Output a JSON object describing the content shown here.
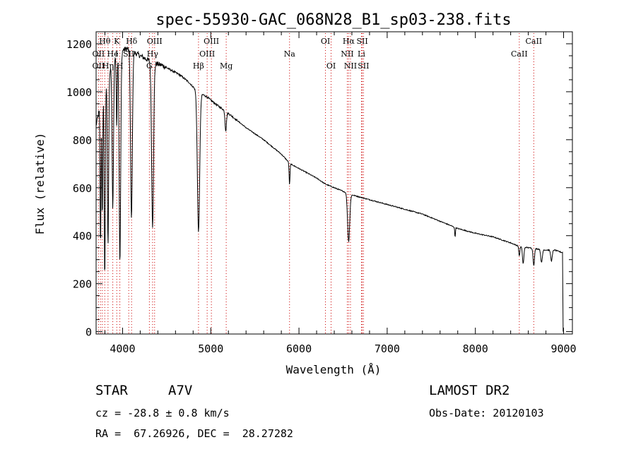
{
  "chart_data": {
    "type": "line",
    "title": "spec-55930-GAC_068N28_B1_sp03-238.fits",
    "xlabel": "Wavelength (Å)",
    "ylabel": "Flux (relative)",
    "xlim": [
      3700,
      9100
    ],
    "ylim": [
      -10,
      1250
    ],
    "xticks": [
      4000,
      5000,
      6000,
      7000,
      8000,
      9000
    ],
    "yticks": [
      0,
      200,
      400,
      600,
      800,
      1000,
      1200
    ],
    "continuum": [
      [
        3700,
        860
      ],
      [
        3780,
        1000
      ],
      [
        3850,
        1080
      ],
      [
        3920,
        1150
      ],
      [
        3980,
        1170
      ],
      [
        4050,
        1180
      ],
      [
        4150,
        1160
      ],
      [
        4250,
        1140
      ],
      [
        4350,
        1120
      ],
      [
        4450,
        1110
      ],
      [
        4550,
        1090
      ],
      [
        4650,
        1070
      ],
      [
        4750,
        1040
      ],
      [
        4850,
        1000
      ],
      [
        4950,
        980
      ],
      [
        5050,
        950
      ],
      [
        5200,
        910
      ],
      [
        5400,
        850
      ],
      [
        5600,
        800
      ],
      [
        5800,
        740
      ],
      [
        5900,
        700
      ],
      [
        6000,
        680
      ],
      [
        6100,
        660
      ],
      [
        6200,
        640
      ],
      [
        6300,
        615
      ],
      [
        6400,
        600
      ],
      [
        6500,
        585
      ],
      [
        6600,
        570
      ],
      [
        6700,
        560
      ],
      [
        6800,
        550
      ],
      [
        7000,
        530
      ],
      [
        7200,
        510
      ],
      [
        7400,
        490
      ],
      [
        7600,
        460
      ],
      [
        7800,
        430
      ],
      [
        8000,
        410
      ],
      [
        8200,
        395
      ],
      [
        8400,
        370
      ],
      [
        8500,
        355
      ],
      [
        8600,
        350
      ],
      [
        8700,
        345
      ],
      [
        8800,
        340
      ],
      [
        8900,
        340
      ],
      [
        8980,
        330
      ]
    ],
    "absorption_lines": [
      {
        "center": 3750,
        "depth": 600,
        "width": 5
      },
      {
        "center": 3770,
        "depth": 520,
        "width": 5
      },
      {
        "center": 3798,
        "depth": 800,
        "width": 6
      },
      {
        "center": 3835,
        "depth": 700,
        "width": 7
      },
      {
        "center": 3889,
        "depth": 600,
        "width": 8
      },
      {
        "center": 3933,
        "depth": 300,
        "width": 5
      },
      {
        "center": 3970,
        "depth": 880,
        "width": 9
      },
      {
        "center": 4101,
        "depth": 700,
        "width": 10
      },
      {
        "center": 4340,
        "depth": 680,
        "width": 11
      },
      {
        "center": 4861,
        "depth": 580,
        "width": 13
      },
      {
        "center": 5170,
        "depth": 80,
        "width": 8
      },
      {
        "center": 5893,
        "depth": 90,
        "width": 5
      },
      {
        "center": 6563,
        "depth": 200,
        "width": 12
      },
      {
        "center": 7770,
        "depth": 40,
        "width": 4
      },
      {
        "center": 8498,
        "depth": 40,
        "width": 6
      },
      {
        "center": 8542,
        "depth": 70,
        "width": 8
      },
      {
        "center": 8662,
        "depth": 70,
        "width": 8
      },
      {
        "center": 8750,
        "depth": 55,
        "width": 9
      },
      {
        "center": 8863,
        "depth": 45,
        "width": 9
      }
    ],
    "line_markers": [
      {
        "label": "Hθ",
        "x": 3798,
        "row": 1,
        "color": "#000000"
      },
      {
        "label": "K",
        "x": 3934,
        "row": 1,
        "color": "#000000"
      },
      {
        "label": "Hδ",
        "x": 4102,
        "row": 1,
        "color": "#000000"
      },
      {
        "label": "OIII",
        "x": 4363,
        "row": 1,
        "color": "#000000"
      },
      {
        "label": "OIII",
        "x": 5007,
        "row": 1,
        "color": "#000000"
      },
      {
        "label": "OI",
        "x": 6300,
        "row": 1,
        "color": "#000000"
      },
      {
        "label": "Hα",
        "x": 6563,
        "row": 1,
        "color": "#000000"
      },
      {
        "label": "SII",
        "x": 6717,
        "row": 1,
        "color": "#000000"
      },
      {
        "label": "CaII",
        "x": 8662,
        "row": 1,
        "color": "#000000"
      },
      {
        "label": "OII",
        "x": 3727,
        "row": 2,
        "color": "#000000"
      },
      {
        "label": "He",
        "x": 3889,
        "row": 2,
        "color": "#000000"
      },
      {
        "label": "I",
        "x": 3933,
        "row": 2,
        "color": "#000000"
      },
      {
        "label": "SII",
        "x": 4070,
        "row": 2,
        "color": "#000000"
      },
      {
        "label": "Hγ",
        "x": 4340,
        "row": 2,
        "color": "#000000"
      },
      {
        "label": "OIII",
        "x": 4959,
        "row": 2,
        "color": "#000000"
      },
      {
        "label": "Na",
        "x": 5893,
        "row": 2,
        "color": "#000000"
      },
      {
        "label": "NII",
        "x": 6548,
        "row": 2,
        "color": "#000000"
      },
      {
        "label": "Li",
        "x": 6708,
        "row": 2,
        "color": "#000000"
      },
      {
        "label": "CaII",
        "x": 8498,
        "row": 2,
        "color": "#000000"
      },
      {
        "label": "OII",
        "x": 3727,
        "row": 3,
        "color": "#000000"
      },
      {
        "label": "Hη",
        "x": 3835,
        "row": 3,
        "color": "#000000"
      },
      {
        "label": "H",
        "x": 3970,
        "row": 3,
        "color": "#000000"
      },
      {
        "label": "G",
        "x": 4304,
        "row": 3,
        "color": "#000000"
      },
      {
        "label": "Hβ",
        "x": 4861,
        "row": 3,
        "color": "#000000"
      },
      {
        "label": "Mg",
        "x": 5175,
        "row": 3,
        "color": "#000000"
      },
      {
        "label": "OI",
        "x": 6364,
        "row": 3,
        "color": "#000000"
      },
      {
        "label": "NII",
        "x": 6584,
        "row": 3,
        "color": "#000000"
      },
      {
        "label": "SII",
        "x": 6731,
        "row": 3,
        "color": "#000000"
      }
    ],
    "marker_lines": [
      3727,
      3750,
      3771,
      3798,
      3835,
      3889,
      3934,
      3969,
      4070,
      4102,
      4304,
      4340,
      4363,
      4861,
      4959,
      5007,
      5175,
      5893,
      6300,
      6364,
      6548,
      6563,
      6584,
      6708,
      6717,
      6731,
      8498,
      8662
    ],
    "marker_line_color": "#cc0000"
  },
  "info": {
    "object_type": "STAR",
    "subclass": "A7V",
    "survey": "LAMOST DR2",
    "cz": "cz = -28.8 ± 0.8 km/s",
    "obs_date": "Obs-Date: 20120103",
    "coords": "RA =  67.26926, DEC =  28.27282"
  }
}
